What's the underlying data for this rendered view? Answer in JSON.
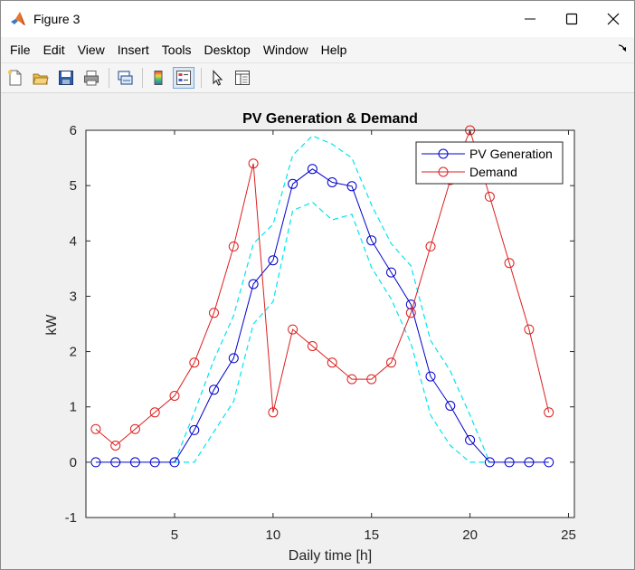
{
  "window": {
    "title": "Figure 3",
    "controls": [
      "minimize",
      "maximize",
      "close"
    ]
  },
  "menu": [
    "File",
    "Edit",
    "View",
    "Insert",
    "Tools",
    "Desktop",
    "Window",
    "Help"
  ],
  "toolbar": [
    {
      "icon": "new-figure-icon"
    },
    {
      "icon": "open-file-icon"
    },
    {
      "icon": "save-icon"
    },
    {
      "icon": "print-icon"
    },
    {
      "icon": "link-plot-icon"
    },
    {
      "icon": "colorbar-icon"
    },
    {
      "icon": "legend-icon",
      "active": true
    },
    {
      "icon": "pointer-icon"
    },
    {
      "icon": "property-inspector-icon"
    }
  ],
  "colors": {
    "pv": "#0000cd",
    "demand": "#dd1f1f",
    "band": "#00e5ee"
  },
  "chart_data": {
    "type": "line",
    "title": "PV Generation & Demand",
    "xlabel": "Daily time [h]",
    "ylabel": "kW",
    "xlim": [
      0.5,
      25.3
    ],
    "ylim": [
      -1,
      6
    ],
    "xticks": [
      5,
      10,
      15,
      20,
      25
    ],
    "yticks": [
      -1,
      0,
      1,
      2,
      3,
      4,
      5,
      6
    ],
    "grid": false,
    "legend_position": "top-right",
    "x": [
      1,
      2,
      3,
      4,
      5,
      6,
      7,
      8,
      9,
      10,
      11,
      12,
      13,
      14,
      15,
      16,
      17,
      18,
      19,
      20,
      21,
      22,
      23,
      24
    ],
    "series": [
      {
        "name": "PV Generation",
        "marker": "circle",
        "values": [
          0,
          0,
          0,
          0,
          0,
          0.58,
          1.31,
          1.88,
          3.22,
          3.65,
          5.03,
          5.3,
          5.06,
          4.99,
          4.01,
          3.43,
          2.85,
          1.55,
          1.02,
          0.4,
          0,
          0,
          0,
          0
        ]
      },
      {
        "name": "Demand",
        "marker": "circle",
        "values": [
          0.6,
          0.3,
          0.6,
          0.9,
          1.2,
          1.8,
          2.7,
          3.9,
          5.4,
          0.9,
          2.4,
          2.1,
          1.8,
          1.5,
          1.5,
          1.8,
          2.7,
          3.9,
          5.1,
          6.0,
          4.8,
          3.6,
          2.4,
          0.9
        ]
      }
    ],
    "bands": [
      {
        "style": "dashed",
        "x": [
          5,
          6,
          7,
          8,
          9,
          10,
          11,
          12,
          13,
          14,
          15,
          16,
          17,
          18,
          19,
          20,
          21
        ],
        "values": [
          0,
          0.9,
          1.85,
          2.65,
          3.95,
          4.3,
          5.55,
          5.9,
          5.75,
          5.5,
          4.65,
          3.95,
          3.55,
          2.2,
          1.65,
          0.85,
          0
        ]
      },
      {
        "style": "dashed",
        "x": [
          5,
          6,
          7,
          8,
          9,
          10,
          11,
          12,
          13,
          14,
          15,
          16,
          17,
          18,
          19,
          20,
          21
        ],
        "values": [
          0,
          0,
          0.55,
          1.1,
          2.5,
          2.9,
          4.55,
          4.7,
          4.38,
          4.48,
          3.52,
          2.95,
          2.15,
          0.85,
          0.3,
          0,
          0
        ]
      }
    ]
  }
}
